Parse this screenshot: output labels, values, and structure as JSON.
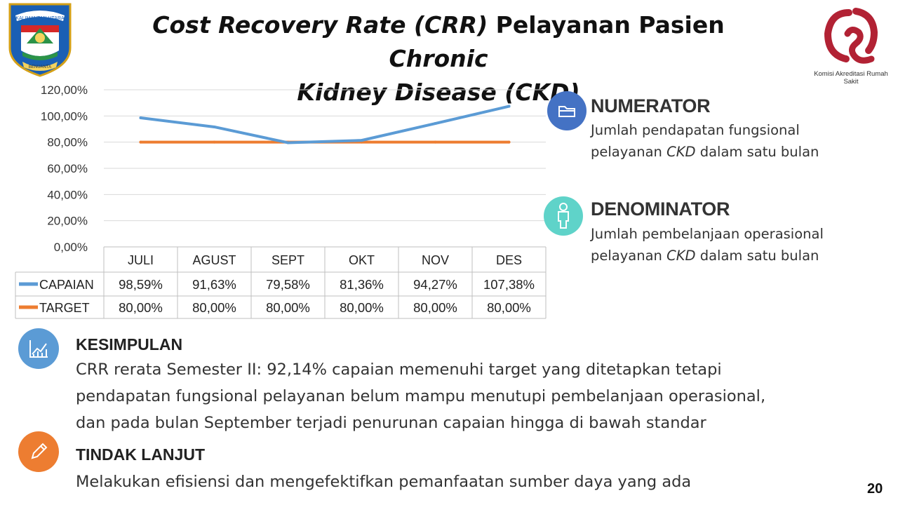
{
  "title": {
    "part1": "Cost Recovery Rate (CRR)",
    "part2": " Pelayanan Pasien ",
    "part3": "Chronic",
    "line2": "Kidney Disease (CKD)"
  },
  "logo_left": {
    "text": "KALIMANTAN UTARA",
    "subtext": "BENUANTA"
  },
  "logo_right": {
    "caption": "Komisi Akreditasi Rumah Sakit"
  },
  "colors": {
    "capaian": "#5b9bd5",
    "target": "#ed7d31",
    "numerator": "#4472c4",
    "denominator": "#4fd1c5",
    "kesimpulan": "#5b9bd5",
    "tindak": "#ed7d31"
  },
  "chart_data": {
    "type": "line",
    "categories": [
      "JULI",
      "AGUST",
      "SEPT",
      "OKT",
      "NOV",
      "DES"
    ],
    "series": [
      {
        "name": "CAPAIAN",
        "values": [
          98.59,
          91.63,
          79.58,
          81.36,
          94.27,
          107.38
        ],
        "labels": [
          "98,59%",
          "91,63%",
          "79,58%",
          "81,36%",
          "94,27%",
          "107,38%"
        ]
      },
      {
        "name": "TARGET",
        "values": [
          80,
          80,
          80,
          80,
          80,
          80
        ],
        "labels": [
          "80,00%",
          "80,00%",
          "80,00%",
          "80,00%",
          "80,00%",
          "80,00%"
        ]
      }
    ],
    "yticks": [
      "0,00%",
      "20,00%",
      "40,00%",
      "60,00%",
      "80,00%",
      "100,00%",
      "120,00%"
    ],
    "ylim": [
      0,
      120
    ],
    "grid": true,
    "legend": "data table"
  },
  "numerator": {
    "title": "NUMERATOR",
    "text_a": "Jumlah pendapatan fungsional",
    "text_b1": "pelayanan ",
    "text_b2": "CKD",
    "text_b3": " dalam satu bulan",
    "icon": "folder-icon"
  },
  "denominator": {
    "title": "DENOMINATOR",
    "text_a": "Jumlah pembelanjaan operasional",
    "text_b1": "pelayanan ",
    "text_b2": "CKD",
    "text_b3": " dalam satu bulan",
    "icon": "person-icon"
  },
  "kesimpulan": {
    "title": "KESIMPULAN",
    "lines": [
      "CRR rerata  Semester II: 92,14% capaian memenuhi target yang ditetapkan tetapi",
      "pendapatan fungsional pelayanan belum mampu menutupi pembelanjaan operasional,",
      "dan pada bulan September terjadi penurunan capaian hingga di bawah standar"
    ],
    "icon": "line-chart-icon"
  },
  "tindak_lanjut": {
    "title": "TINDAK LANJUT",
    "text": "Melakukan efisiensi dan mengefektifkan pemanfaatan  sumber daya yang ada",
    "icon": "pencil-icon"
  },
  "page_number": "20"
}
